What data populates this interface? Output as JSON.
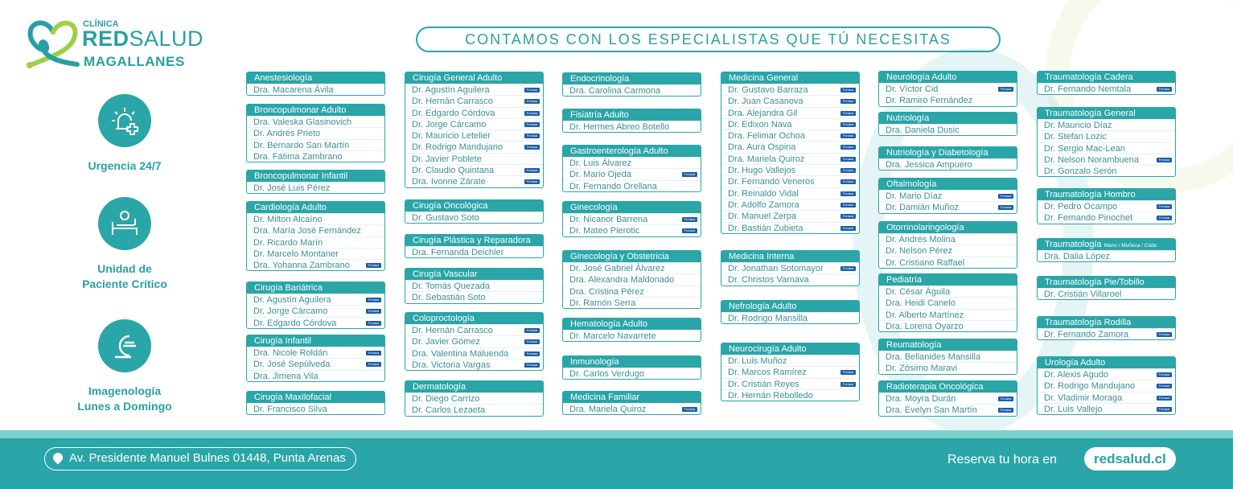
{
  "logo": {
    "line1": "CLÍNICA",
    "red": "RED",
    "salud": "SALUD",
    "line3": "MAGALLANES"
  },
  "headline": "CONTAMOS CON LOS ESPECIALISTAS QUE TÚ NECESITAS",
  "services": [
    {
      "icon": "siren-plus-icon",
      "label1": "Urgencia 24/7",
      "label2": ""
    },
    {
      "icon": "hospital-bed-icon",
      "label1": "Unidad de",
      "label2": "Paciente Crítico"
    },
    {
      "icon": "imaging-scanner-icon",
      "label1": "Imagenología",
      "label2": "Lunes a Domingo"
    }
  ],
  "badge_label": "Fonasa",
  "columns": [
    [
      {
        "title": "Anestesiología",
        "doctors": [
          [
            "Dra. Macarena Ávila",
            0
          ]
        ]
      },
      {
        "title": "Broncopulmonar Adulto",
        "doctors": [
          [
            "Dra. Valeska Glasinovich",
            0
          ],
          [
            "Dr. Andrés Prieto",
            0
          ],
          [
            "Dr. Bernardo San Martín",
            0
          ],
          [
            "Dra. Fátima Zambrano",
            0
          ]
        ]
      },
      {
        "title": "Broncopulmonar Infantil",
        "doctors": [
          [
            "Dr. José Luis Pérez",
            0
          ]
        ]
      },
      {
        "title": "Cardiología Adulto",
        "doctors": [
          [
            "Dr. Milton Alcaíno",
            0
          ],
          [
            "Dra. María José Fernández",
            0
          ],
          [
            "Dr. Ricardo Marín",
            0
          ],
          [
            "Dr. Marcelo Montaner",
            0
          ],
          [
            "Dra. Yohanna Zambrano",
            1
          ]
        ]
      },
      {
        "title": "Cirugía Bariátrica",
        "doctors": [
          [
            "Dr. Agustín Aguilera",
            1
          ],
          [
            "Dr. Jorge Cárcamo",
            1
          ],
          [
            "Dr. Edgardo Córdova",
            1
          ]
        ]
      },
      {
        "title": "Cirugía Infantil",
        "doctors": [
          [
            "Dra. Nicole Roldán",
            1
          ],
          [
            "Dr. José Sepúlveda",
            1
          ],
          [
            "Dra. Jimena Vila",
            0
          ]
        ]
      },
      {
        "title": "Cirugía Maxilofacial",
        "doctors": [
          [
            "Dr. Francisco Silva",
            0
          ]
        ]
      }
    ],
    [
      {
        "title": "Cirugía General Adulto",
        "doctors": [
          [
            "Dr. Agustín Aguilera",
            1
          ],
          [
            "Dr. Hernán Carrasco",
            1
          ],
          [
            "Dr. Edgardo Córdova",
            1
          ],
          [
            "Dr. Jorge Cárcamo",
            1
          ],
          [
            "Dr. Mauricio Letelier",
            1
          ],
          [
            "Dr. Rodrigo Mandujano",
            1
          ],
          [
            "Dr. Javier Poblete",
            0
          ],
          [
            "Dr. Claudio Quintana",
            1
          ],
          [
            "Dra. Ivonne Zárate",
            1
          ]
        ]
      },
      {
        "title": "Cirugía Oncológica",
        "doctors": [
          [
            "Dr. Gustavo Soto",
            0
          ]
        ]
      },
      {
        "title": "Cirugía Plástica y Reparadora",
        "doctors": [
          [
            "Dra. Fernanda Deichler",
            0
          ]
        ]
      },
      {
        "title": "Cirugía Vascular",
        "doctors": [
          [
            "Dr. Tomás Quezada",
            0
          ],
          [
            "Dr. Sebastián Soto",
            0
          ]
        ]
      },
      {
        "title": "Coloproctología",
        "doctors": [
          [
            "Dr. Hernán Carrasco",
            1
          ],
          [
            "Dr. Javier Gómez",
            1
          ],
          [
            "Dra. Valentina Maluenda",
            1
          ],
          [
            "Dra. Victoria Vargas",
            1
          ]
        ]
      },
      {
        "title": "Dermatología",
        "doctors": [
          [
            "Dr. Diego Carrizo",
            0
          ],
          [
            "Dr. Carlos Lezaeta",
            0
          ]
        ]
      }
    ],
    [
      {
        "title": "Endocrinología",
        "doctors": [
          [
            "Dra. Carolina Carmona",
            0
          ]
        ]
      },
      {
        "title": "Fisiatría Adulto",
        "doctors": [
          [
            "Dr. Hermes Abreo Botello",
            0
          ]
        ]
      },
      {
        "title": "Gastroenterología Adulto",
        "doctors": [
          [
            "Dr. Luis Álvarez",
            0
          ],
          [
            "Dr. Mario Ojeda",
            1
          ],
          [
            "Dr. Fernando Orellana",
            0
          ]
        ]
      },
      {
        "title": "Ginecología",
        "doctors": [
          [
            "Dr. Nicanor Barrena",
            1
          ],
          [
            "Dr. Mateo Pierotic",
            1
          ]
        ]
      },
      {
        "title": "Ginecología y Obstetricia",
        "doctors": [
          [
            "Dr. José Gabriel Álvarez",
            0
          ],
          [
            "Dra. Alexandra Maldonado",
            0
          ],
          [
            "Dra. Cristina Pérez",
            0
          ],
          [
            "Dr. Ramón Serra",
            0
          ]
        ]
      },
      {
        "title": "Hematología Adulto",
        "doctors": [
          [
            "Dr. Marcelo Navarrete",
            0
          ]
        ]
      },
      {
        "title": "Inmunología",
        "doctors": [
          [
            "Dr. Carlos Verdugo",
            0
          ]
        ]
      },
      {
        "title": "Medicina Familiar",
        "doctors": [
          [
            "Dra. Mariela Quiroz",
            1
          ]
        ]
      }
    ],
    [
      {
        "title": "Medicina General",
        "doctors": [
          [
            "Dr. Gustavo Barraza",
            1
          ],
          [
            "Dr. Juan Casanova",
            1
          ],
          [
            "Dra. Alejandra Gil",
            1
          ],
          [
            "Dr. Edixon Nava",
            1
          ],
          [
            "Dra. Felimar Ochoa",
            1
          ],
          [
            "Dra. Aura Ospina",
            1
          ],
          [
            "Dra. Mariela Quiroz",
            1
          ],
          [
            "Dr. Hugo Vallejos",
            1
          ],
          [
            "Dr. Fernando Veneros",
            1
          ],
          [
            "Dr. Reinaldo Vidal",
            1
          ],
          [
            "Dr. Adolfo Zamora",
            1
          ],
          [
            "Dr. Manuel Zerpa",
            1
          ],
          [
            "Dr. Bastián Zubieta",
            1
          ]
        ]
      },
      {
        "title": "Medicina Interna",
        "doctors": [
          [
            "Dr. Jonathan Sotomayor",
            1
          ],
          [
            "Dr. Christos Varnava",
            0
          ]
        ]
      },
      {
        "title": "Nefrología Adulto",
        "doctors": [
          [
            "Dr. Rodrigo Mansilla",
            0
          ]
        ]
      },
      {
        "title": "Neurocirugía Adulto",
        "doctors": [
          [
            "Dr. Luis Muñoz",
            0
          ],
          [
            "Dr. Marcos Ramírez",
            1
          ],
          [
            "Dr. Cristián Reyes",
            1
          ],
          [
            "Dr. Hernán Rebolledo",
            0
          ]
        ]
      }
    ],
    [
      {
        "title": "Neurología Adulto",
        "doctors": [
          [
            "Dr. Víctor Cid",
            1
          ],
          [
            "Dr. Ramiro Fernández",
            0
          ]
        ]
      },
      {
        "title": "Nutriología",
        "doctors": [
          [
            "Dra. Daniela Dusic",
            0
          ]
        ]
      },
      {
        "title": "Nutriología y Diabetología",
        "doctors": [
          [
            "Dra. Jessica Ampuero",
            0
          ]
        ]
      },
      {
        "title": "Oftalmología",
        "doctors": [
          [
            "Dr. Mario Díaz",
            1
          ],
          [
            "Dr. Damián Muñoz",
            1
          ]
        ]
      },
      {
        "title": "Otorrinolaringología",
        "doctors": [
          [
            "Dr. Andrés Molina",
            0
          ],
          [
            "Dr. Nelson Pérez",
            0
          ],
          [
            "Dr. Cristiano Raffael",
            0
          ]
        ]
      },
      {
        "title": "Pediatría",
        "doctors": [
          [
            "Dr. César Águila",
            0
          ],
          [
            "Dra. Heidi Canelo",
            0
          ],
          [
            "Dr. Alberto Martínez",
            0
          ],
          [
            "Dra. Lorena Oyarzo",
            0
          ]
        ]
      },
      {
        "title": "Reumatología",
        "doctors": [
          [
            "Dra. Bellanides Mansilla",
            0
          ],
          [
            "Dr. Zósimo Maravi",
            0
          ]
        ]
      },
      {
        "title": "Radioterapia Oncológica",
        "doctors": [
          [
            "Dra. Moyra Durán",
            1
          ],
          [
            "Dra. Evelyn San Martín",
            1
          ]
        ]
      }
    ],
    [
      {
        "title": "Traumatología Cadera",
        "doctors": [
          [
            "Dr. Fernando Nemtala",
            1
          ]
        ]
      },
      {
        "title": "Traumatología General",
        "doctors": [
          [
            "Dr. Mauricio Díaz",
            0
          ],
          [
            "Dr. Stefan Lozic",
            0
          ],
          [
            "Dr. Sergio Mac-Lean",
            0
          ],
          [
            "Dr. Nelson Norambuena",
            1
          ],
          [
            "Dr. Gonzalo Serón",
            0
          ]
        ]
      },
      {
        "title": "Traumatología Hombro",
        "doctors": [
          [
            "Dr. Pedro Ocampo",
            1
          ],
          [
            "Dr. Fernando Pinochet",
            1
          ]
        ]
      },
      {
        "title": "Traumatología",
        "subtitle": "Mano / Muñeca / Codo",
        "doctors": [
          [
            "Dra. Dalia López",
            0
          ]
        ]
      },
      {
        "title": "Traumatología Pie/Tobillo",
        "doctors": [
          [
            "Dr. Cristián Villaroel",
            0
          ]
        ]
      },
      {
        "title": "Traumatología Rodilla",
        "doctors": [
          [
            "Dr. Fernando Zamora",
            1
          ]
        ]
      },
      {
        "title": "Urología Adulto",
        "doctors": [
          [
            "Dr. Alexis Agudo",
            1
          ],
          [
            "Dr. Rodrigo Mandujano",
            1
          ],
          [
            "Dr. Vladimir Moraga",
            1
          ],
          [
            "Dr. Luis Vallejo",
            1
          ]
        ]
      }
    ]
  ],
  "footer": {
    "address": "Av. Presidente Manuel Bulnes 01448, Punta Arenas",
    "reserve": "Reserva tu hora en",
    "site": "redsalud.cl"
  }
}
